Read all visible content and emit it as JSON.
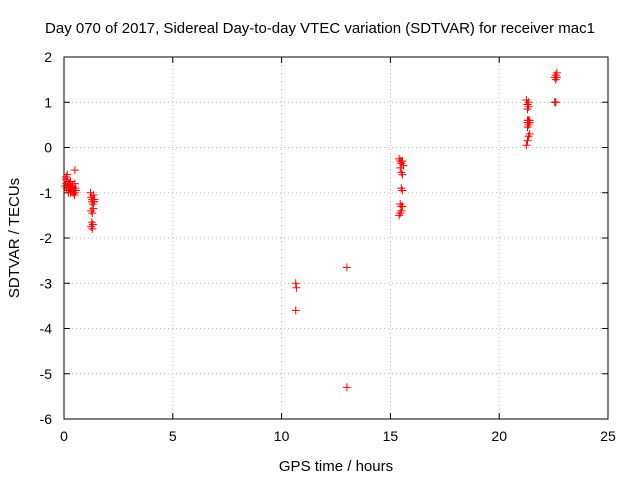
{
  "chart_data": {
    "type": "scatter",
    "title": "Day 070 of 2017, Sidereal Day-to-day VTEC variation (SDTVAR) for receiver mac1",
    "xlabel": "GPS time / hours",
    "ylabel": "SDTVAR / TECUs",
    "xlim": [
      0,
      25
    ],
    "ylim": [
      -6,
      2
    ],
    "xticks": [
      "0",
      "5",
      "10",
      "15",
      "20",
      "25"
    ],
    "yticks": [
      "-6",
      "-5",
      "-4",
      "-3",
      "-2",
      "-1",
      "0",
      "1",
      "2"
    ],
    "grid": true,
    "marker": "plus",
    "color": "#ff0000",
    "series": [
      {
        "x": [
          0.05,
          0.08,
          0.1,
          0.12,
          0.15,
          0.18,
          0.2,
          0.22,
          0.25,
          0.28,
          0.3,
          0.32,
          0.35,
          0.38,
          0.4,
          0.42,
          0.45,
          0.48,
          0.5,
          0.52,
          0.55,
          0.1,
          0.15,
          0.2,
          0.25,
          0.3,
          0.35,
          0.4,
          0.45,
          0.5,
          0.2,
          0.3,
          0.4,
          0.5,
          1.22,
          1.25,
          1.28,
          1.3,
          1.32,
          1.35,
          1.38,
          1.4,
          1.25,
          1.3,
          1.35,
          1.28,
          1.33,
          1.25,
          1.3,
          1.38,
          10.65,
          10.68,
          10.65,
          13.0,
          13.0,
          15.4,
          15.45,
          15.5,
          15.55,
          15.6,
          15.45,
          15.5,
          15.55,
          15.5,
          15.55,
          15.45,
          15.5,
          15.55,
          15.5,
          15.45,
          15.4,
          15.5,
          21.25,
          21.3,
          21.35,
          21.4,
          21.3,
          21.35,
          21.4,
          21.3,
          21.35,
          21.4,
          21.3,
          21.35,
          21.3,
          21.35,
          21.25,
          21.3,
          21.35,
          22.55,
          22.6,
          22.65,
          22.6,
          22.55,
          22.6,
          22.65,
          22.6
        ],
        "y": [
          -0.85,
          -0.7,
          -0.8,
          -0.9,
          -0.75,
          -0.85,
          -0.95,
          -0.8,
          -0.9,
          -0.85,
          -1.0,
          -0.9,
          -0.95,
          -0.85,
          -0.9,
          -1.0,
          -0.95,
          -1.05,
          -0.5,
          -0.9,
          -0.95,
          -0.65,
          -0.6,
          -0.9,
          -0.8,
          -0.85,
          -0.9,
          -0.95,
          -0.95,
          -0.8,
          -1.0,
          -0.75,
          -0.85,
          -1.0,
          -1.0,
          -1.1,
          -1.2,
          -1.15,
          -1.25,
          -1.05,
          -1.2,
          -1.15,
          -1.4,
          -1.45,
          -1.35,
          -1.65,
          -1.7,
          -1.75,
          -1.8,
          -1.2,
          -3.0,
          -3.1,
          -3.6,
          -2.65,
          -5.3,
          -0.25,
          -0.3,
          -0.35,
          -0.3,
          -0.4,
          -0.45,
          -0.55,
          -0.6,
          -0.9,
          -0.95,
          -1.25,
          -1.3,
          -1.3,
          -1.4,
          -1.45,
          -1.5,
          -0.3,
          0.05,
          0.15,
          0.25,
          0.3,
          0.45,
          0.5,
          0.55,
          0.55,
          0.6,
          0.6,
          0.85,
          0.9,
          0.95,
          1.0,
          1.05,
          0.6,
          0.55,
          1.0,
          1.0,
          1.65,
          1.6,
          1.55,
          1.5,
          1.55,
          1.0
        ]
      }
    ]
  }
}
